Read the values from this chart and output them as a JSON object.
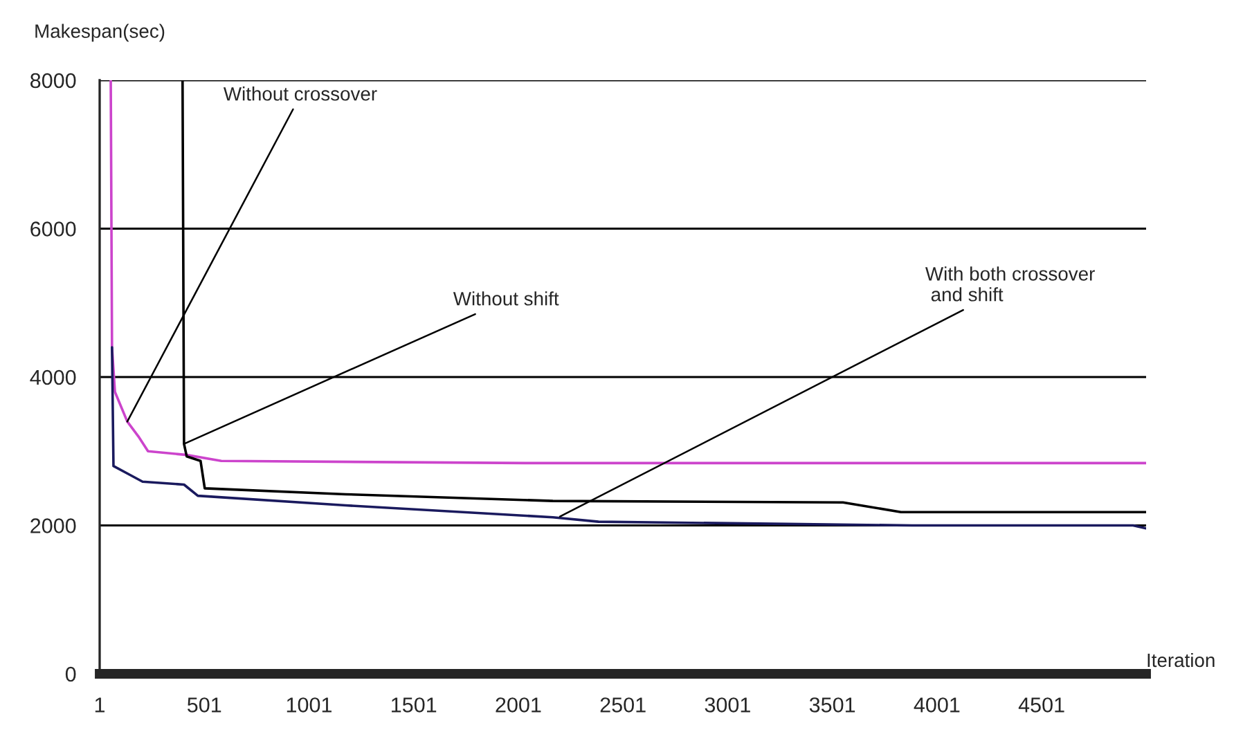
{
  "chart_data": {
    "type": "line",
    "xlabel": "Iteration",
    "ylabel": "Makespan(sec)",
    "xlim": [
      1,
      5000
    ],
    "xticks": [
      1,
      501,
      1001,
      1501,
      2001,
      2501,
      3001,
      3501,
      4001,
      4501
    ],
    "ylim": [
      0,
      8000
    ],
    "yticks": [
      0,
      2000,
      4000,
      6000,
      8000
    ],
    "grid": "y",
    "series": [
      {
        "color": "#cc44cc",
        "x": [
          54,
          60,
          74,
          133,
          186,
          232,
          417,
          582,
          2034,
          5000
        ],
        "values": [
          8000,
          4400,
          3800,
          3400,
          3200,
          3000,
          2950,
          2870,
          2840,
          2840
        ]
      },
      {
        "color": "#1a1a5e",
        "x": [
          60,
          67,
          140,
          206,
          404,
          470,
          1176,
          2166,
          2384,
          3288,
          3882,
          4938,
          5000
        ],
        "values": [
          4400,
          2800,
          2690,
          2590,
          2550,
          2400,
          2270,
          2110,
          2050,
          2020,
          2000,
          2000,
          1960
        ]
      },
      {
        "color": "#000000",
        "x": [
          397,
          404,
          417,
          483,
          503,
          1176,
          2166,
          3552,
          3829,
          5000
        ],
        "values": [
          8000,
          3100,
          2930,
          2870,
          2500,
          2420,
          2330,
          2310,
          2180,
          2180
        ]
      }
    ],
    "annotations": [
      {
        "text": "Without crossover",
        "x": 133,
        "y": 3400
      },
      {
        "text": "Without shift",
        "x": 404,
        "y": 3100
      },
      {
        "text": "With both crossover\n and shift",
        "x": 2200,
        "y": 2120
      }
    ]
  }
}
